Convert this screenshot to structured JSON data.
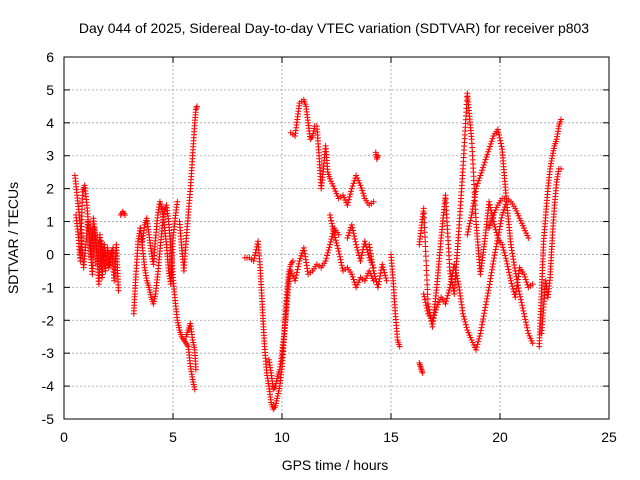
{
  "chart_data": {
    "type": "scatter",
    "title": "Day 044 of 2025, Sidereal Day-to-day VTEC variation (SDTVAR) for receiver p803",
    "xlabel": "GPS time / hours",
    "ylabel": "SDTVAR / TECUs",
    "xlim": [
      0,
      25
    ],
    "ylim": [
      -5,
      6
    ],
    "xticks": [
      0,
      5,
      10,
      15,
      20,
      25
    ],
    "yticks": [
      -5,
      -4,
      -3,
      -2,
      -1,
      0,
      1,
      2,
      3,
      4,
      5,
      6
    ],
    "grid": true,
    "marker": "+",
    "color": "#ff0000",
    "series": [
      {
        "name": "SDTVAR",
        "segments": [
          {
            "x": [
              0.5,
              0.6,
              0.7,
              0.8,
              0.9,
              1.0,
              1.1,
              1.2,
              1.3,
              1.4,
              1.5,
              1.6,
              1.7,
              1.8,
              1.9,
              2.0,
              2.1,
              2.2,
              2.3,
              2.4,
              2.5
            ],
            "y": [
              2.4,
              1.8,
              1.2,
              0.5,
              -0.4,
              0.3,
              1.0,
              0.2,
              -0.6,
              0.8,
              0.1,
              -0.9,
              0.4,
              0.0,
              -0.5,
              0.2,
              -0.3,
              0.1,
              -0.8,
              0.3,
              -1.1
            ]
          },
          {
            "x": [
              0.55,
              0.65,
              0.75,
              0.85,
              0.95,
              1.05,
              1.15,
              1.25,
              1.35,
              1.45,
              1.55,
              1.65,
              1.75,
              1.85,
              1.95,
              2.05,
              2.15,
              2.25
            ],
            "y": [
              1.2,
              0.6,
              -0.2,
              1.9,
              2.1,
              1.5,
              0.7,
              -0.1,
              1.1,
              0.4,
              -0.3,
              0.6,
              -0.7,
              0.3,
              -0.2,
              -0.4,
              0.0,
              0.2
            ]
          },
          {
            "x": [
              2.6,
              2.7,
              2.8
            ],
            "y": [
              1.2,
              1.3,
              1.2
            ]
          },
          {
            "x": [
              3.2,
              3.3,
              3.4,
              3.5,
              3.6,
              3.7,
              3.8,
              3.9,
              4.0,
              4.1,
              4.2,
              4.3,
              4.4,
              4.5,
              4.6,
              4.7,
              4.8,
              4.9,
              5.0,
              5.1,
              5.2,
              5.3,
              5.4,
              5.5,
              5.6,
              5.7,
              5.8,
              5.9,
              6.0
            ],
            "y": [
              -1.8,
              -0.6,
              0.4,
              0.8,
              0.2,
              -0.4,
              -0.8,
              -1.0,
              -1.3,
              -1.5,
              -1.2,
              -0.6,
              0.1,
              0.8,
              1.3,
              1.5,
              1.0,
              0.2,
              -0.7,
              -1.4,
              -2.0,
              -2.3,
              -2.5,
              -2.6,
              -2.7,
              -2.8,
              -3.4,
              -3.8,
              -4.1
            ]
          },
          {
            "x": [
              3.5,
              3.6,
              3.7,
              3.8,
              3.9,
              4.0,
              4.1,
              4.2,
              4.3,
              4.4,
              4.5,
              4.6,
              4.7,
              4.8,
              4.9,
              5.0,
              5.1,
              5.2
            ],
            "y": [
              0.8,
              0.4,
              0.9,
              1.1,
              0.6,
              0.1,
              -0.3,
              0.5,
              1.2,
              1.6,
              1.4,
              0.9,
              0.3,
              -0.5,
              -0.9,
              0.5,
              1.1,
              1.6
            ]
          },
          {
            "x": [
              5.3,
              5.4,
              5.5,
              5.6,
              5.7,
              5.8,
              5.9,
              6.0,
              6.05,
              6.1
            ],
            "y": [
              1.0,
              0.2,
              -0.5,
              0.4,
              1.2,
              2.0,
              3.0,
              4.0,
              4.4,
              4.5
            ]
          },
          {
            "x": [
              5.6,
              5.7,
              5.8,
              5.9,
              6.0,
              6.05
            ],
            "y": [
              -2.5,
              -2.3,
              -2.1,
              -2.6,
              -2.9,
              -3.5
            ]
          },
          {
            "x": [
              8.3,
              8.5,
              8.7,
              8.9,
              9.0,
              9.1,
              9.2,
              9.3,
              9.4,
              9.5,
              9.6,
              9.7,
              9.8,
              9.9,
              10.0,
              10.1,
              10.2,
              10.3,
              10.4,
              10.5
            ],
            "y": [
              -0.1,
              -0.1,
              -0.2,
              0.4,
              -0.4,
              -1.6,
              -2.8,
              -3.6,
              -4.0,
              -4.5,
              -4.7,
              -4.6,
              -4.3,
              -4.0,
              -3.4,
              -2.5,
              -1.4,
              -0.6,
              -0.3,
              -0.2
            ]
          },
          {
            "x": [
              9.4,
              9.5,
              9.6,
              9.7,
              9.8,
              9.9,
              10.0,
              10.1,
              10.2,
              10.3,
              10.4
            ],
            "y": [
              -3.2,
              -3.6,
              -4.1,
              -4.0,
              -3.7,
              -3.5,
              -3.0,
              -2.4,
              -1.7,
              -0.9,
              -0.5
            ]
          },
          {
            "x": [
              10.4,
              10.6,
              10.8,
              11.0,
              11.2,
              11.4,
              11.6,
              11.8,
              12.0,
              12.2,
              12.4,
              12.6
            ],
            "y": [
              -0.5,
              -0.8,
              -0.2,
              0.2,
              -0.6,
              -0.5,
              -0.3,
              -0.4,
              -0.2,
              0.3,
              0.8,
              0.6
            ]
          },
          {
            "x": [
              10.4,
              10.6,
              10.8,
              11.0,
              11.1,
              11.2,
              11.3,
              11.4,
              11.5,
              11.6,
              11.7,
              11.8,
              11.9,
              12.0,
              12.1,
              12.2,
              12.4,
              12.6,
              12.8,
              13.0,
              13.2,
              13.4,
              13.6,
              13.8,
              14.0,
              14.2
            ],
            "y": [
              3.7,
              3.6,
              4.6,
              4.7,
              4.5,
              4.0,
              3.5,
              3.6,
              3.9,
              3.9,
              3.0,
              2.0,
              2.6,
              3.3,
              2.5,
              2.3,
              2.0,
              1.7,
              1.8,
              1.5,
              2.0,
              2.4,
              2.1,
              1.7,
              1.5,
              1.6
            ]
          },
          {
            "x": [
              12.2,
              12.4,
              12.6,
              12.8,
              13.0,
              13.2,
              13.4,
              13.6,
              13.8,
              14.0,
              14.2
            ],
            "y": [
              1.2,
              0.6,
              0.1,
              -0.5,
              -0.4,
              -0.6,
              -1.0,
              -0.7,
              -0.8,
              -0.5,
              -0.8
            ]
          },
          {
            "x": [
              13.0,
              13.2,
              13.4,
              13.6,
              13.8,
              14.0,
              14.2
            ],
            "y": [
              0.5,
              0.9,
              0.3,
              -0.2,
              0.4,
              -0.1,
              -0.4
            ]
          },
          {
            "x": [
              14.3,
              14.35,
              14.4
            ],
            "y": [
              3.1,
              2.9,
              3.0
            ]
          },
          {
            "x": [
              14.0,
              14.2,
              14.4,
              14.6,
              14.8
            ],
            "y": [
              0.3,
              -0.5,
              -1.0,
              -0.3,
              -0.8
            ]
          },
          {
            "x": [
              15.0,
              15.1,
              15.2,
              15.3,
              15.4
            ],
            "y": [
              0.0,
              -0.8,
              -1.8,
              -2.6,
              -2.8
            ]
          },
          {
            "x": [
              16.3,
              16.35,
              16.4,
              16.45
            ],
            "y": [
              -3.3,
              -3.4,
              -3.5,
              -3.6
            ]
          },
          {
            "x": [
              16.3,
              16.5,
              16.7,
              16.9,
              17.1,
              17.3,
              17.5,
              17.7,
              17.9,
              18.1,
              18.3,
              18.5,
              18.7,
              18.9,
              19.1,
              19.3,
              19.5,
              19.7,
              19.9,
              20.1,
              20.3,
              20.5,
              20.7,
              20.9,
              21.1,
              21.3,
              21.5
            ],
            "y": [
              0.3,
              1.4,
              -1.5,
              -2.2,
              -1.0,
              0.5,
              1.8,
              -0.5,
              -1.2,
              0.6,
              2.6,
              4.9,
              3.5,
              1.0,
              -0.6,
              0.4,
              1.6,
              1.0,
              0.5,
              0.3,
              -0.2,
              -0.8,
              -1.3,
              -0.4,
              -0.6,
              -1.0,
              -0.9
            ]
          },
          {
            "x": [
              16.5,
              16.7,
              16.9,
              17.1,
              17.3,
              17.5,
              17.7,
              17.9,
              18.1,
              18.3,
              18.5,
              18.7,
              18.9,
              19.1,
              19.3,
              19.5,
              19.7,
              19.9,
              20.1,
              20.3
            ],
            "y": [
              -1.2,
              -1.8,
              -2.0,
              -1.6,
              -1.3,
              -1.5,
              -1.0,
              -0.3,
              -0.9,
              -1.8,
              -2.3,
              -2.6,
              -2.9,
              -2.4,
              -1.7,
              -1.0,
              -0.2,
              0.5,
              1.2,
              1.6
            ]
          },
          {
            "x": [
              18.5,
              18.7,
              18.9,
              19.1,
              19.3,
              19.5,
              19.7,
              19.9,
              20.1,
              20.3,
              20.5,
              20.7,
              20.9,
              21.1,
              21.3,
              21.5
            ],
            "y": [
              0.6,
              1.2,
              2.0,
              2.4,
              2.8,
              3.2,
              3.6,
              3.8,
              3.2,
              1.6,
              0.3,
              -0.5,
              -1.2,
              -1.8,
              -2.4,
              -2.7
            ]
          },
          {
            "x": [
              19.5,
              19.7,
              19.9,
              20.1,
              20.3,
              20.5,
              20.7,
              20.9,
              21.1,
              21.3
            ],
            "y": [
              0.8,
              1.2,
              1.5,
              1.7,
              1.7,
              1.6,
              1.4,
              1.1,
              0.8,
              0.5
            ]
          },
          {
            "x": [
              21.8,
              21.9,
              22.0,
              22.1,
              22.2,
              22.3,
              22.4,
              22.5,
              22.6,
              22.7,
              22.8
            ],
            "y": [
              -2.8,
              -1.2,
              0.4,
              1.2,
              2.0,
              2.6,
              3.0,
              3.3,
              3.5,
              3.9,
              4.1
            ]
          },
          {
            "x": [
              21.9,
              22.0,
              22.1,
              22.2,
              22.3,
              22.4,
              22.5,
              22.6,
              22.7,
              22.8
            ],
            "y": [
              -2.4,
              -1.6,
              -0.8,
              -1.3,
              -0.7,
              0.5,
              1.5,
              2.2,
              2.6,
              2.6
            ]
          }
        ]
      }
    ]
  }
}
